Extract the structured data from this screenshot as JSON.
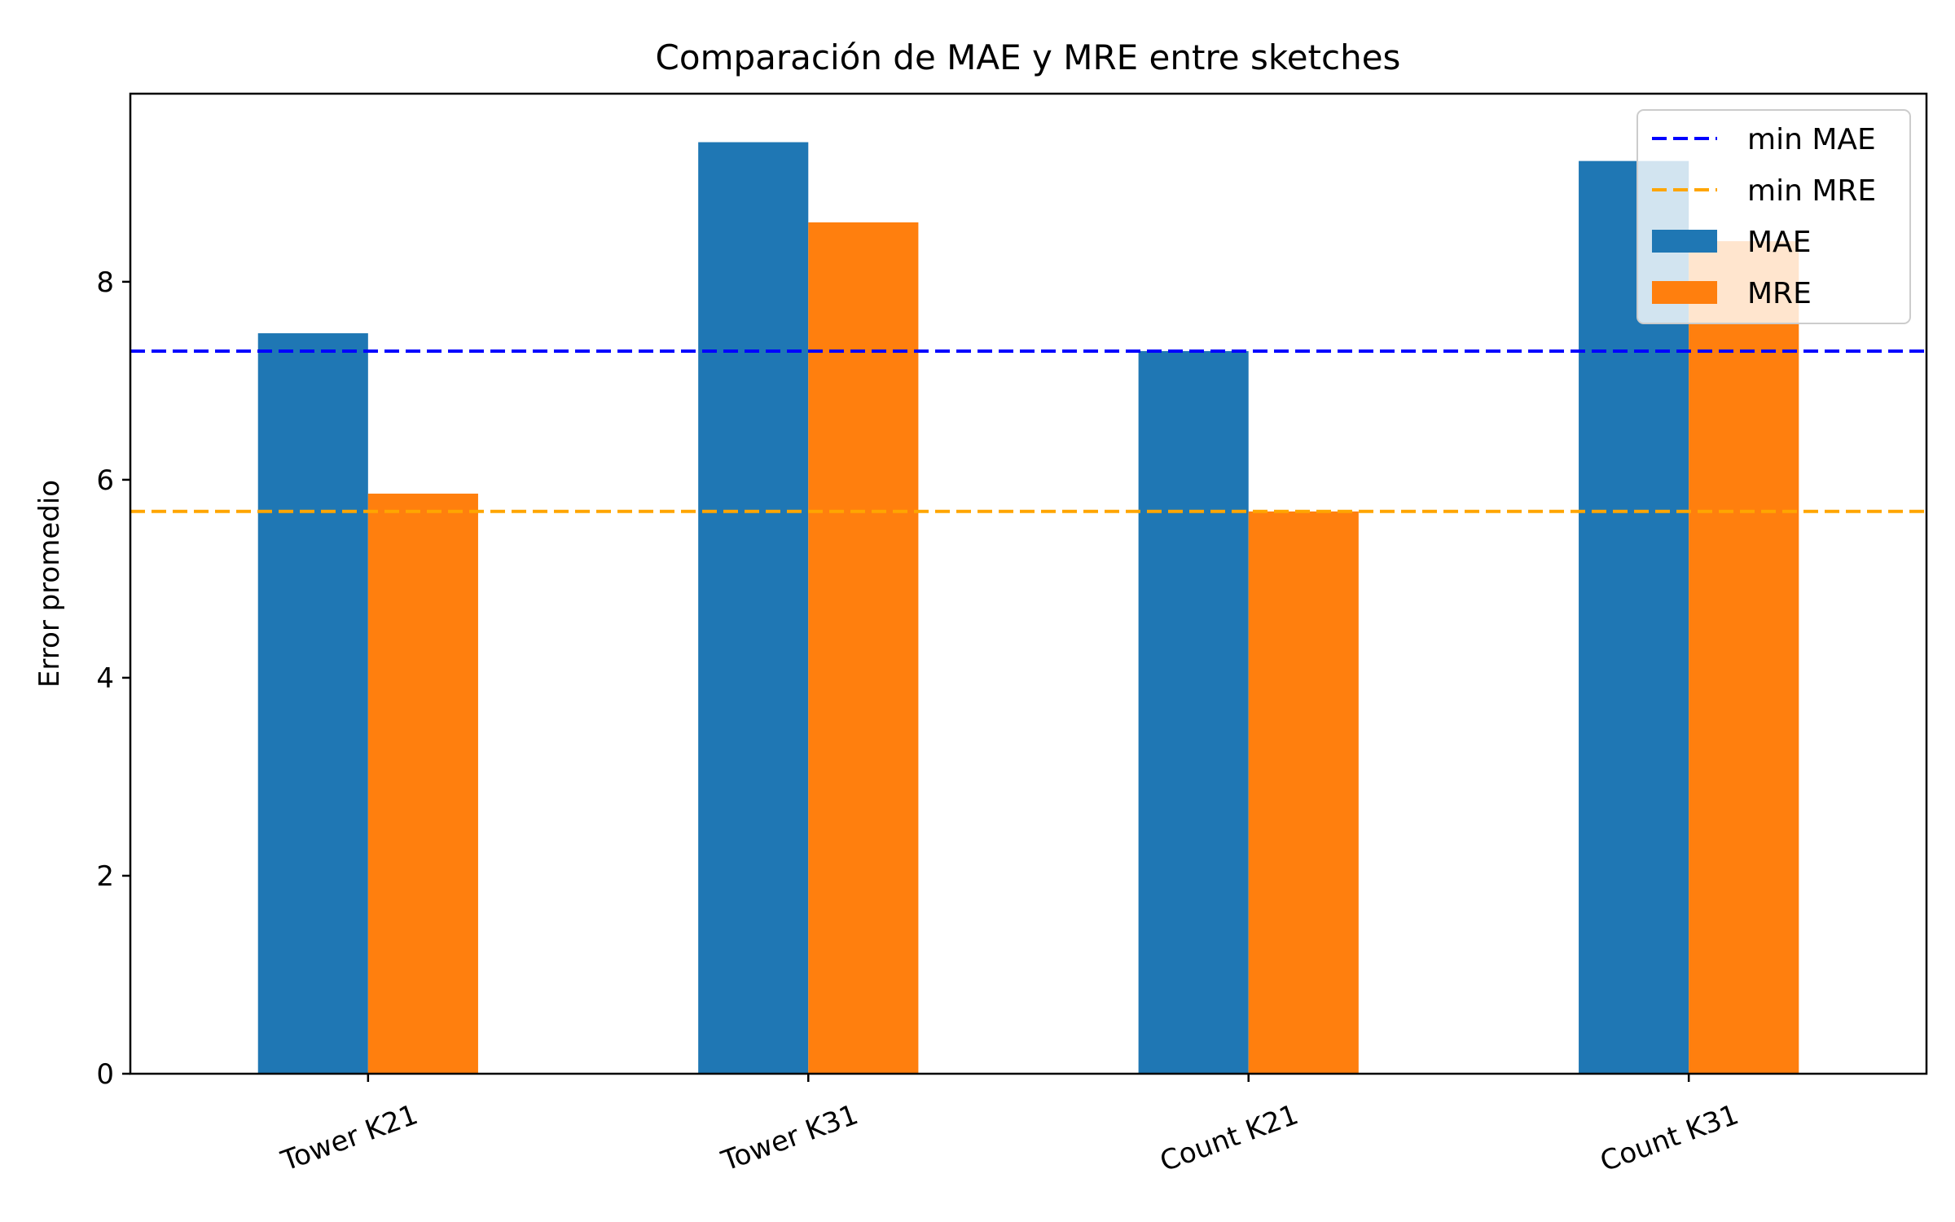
{
  "chart_data": {
    "type": "bar",
    "title": "Comparación de MAE y MRE entre sketches",
    "xlabel": "",
    "ylabel": "Error promedio",
    "categories": [
      "Tower K21",
      "Tower K31",
      "Count K21",
      "Count K31"
    ],
    "series": [
      {
        "name": "MAE",
        "color": "#1f77b4",
        "values": [
          7.48,
          9.41,
          7.3,
          9.22
        ]
      },
      {
        "name": "MRE",
        "color": "#ff7f0e",
        "values": [
          5.86,
          8.6,
          5.68,
          8.41
        ]
      }
    ],
    "reference_lines": [
      {
        "name": "min MAE",
        "value": 7.3,
        "color": "#0000ff",
        "style": "dashed"
      },
      {
        "name": "min MRE",
        "value": 5.68,
        "color": "#ffa500",
        "style": "dashed"
      }
    ],
    "ylim": [
      0,
      9.9
    ],
    "yticks": [
      0,
      2,
      4,
      6,
      8
    ],
    "ytick_labels": [
      "0",
      "2",
      "4",
      "6",
      "8"
    ],
    "grid": false,
    "legend_position": "top-right"
  }
}
